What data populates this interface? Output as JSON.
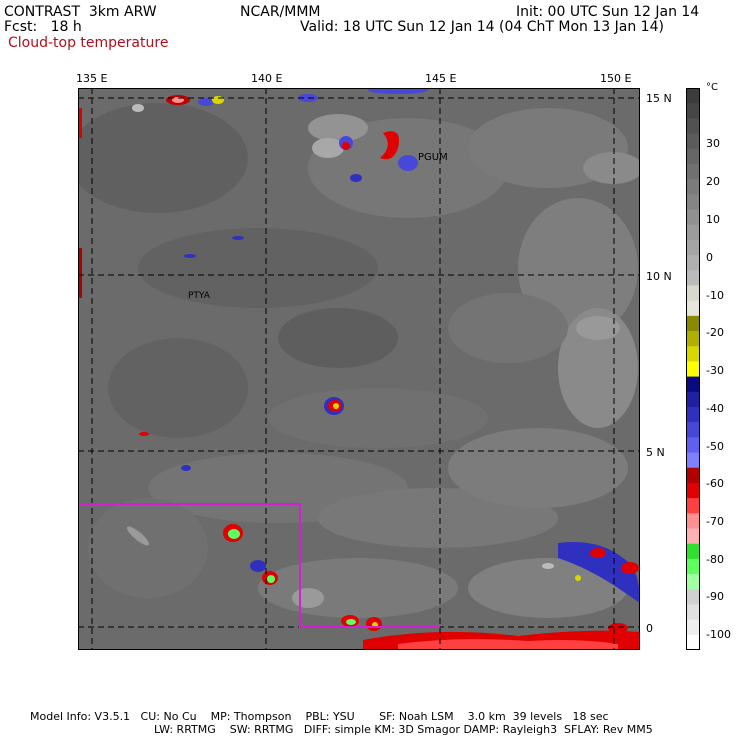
{
  "header": {
    "model": "CONTRAST  3km ARW",
    "fcst": "Fcst:   18 h",
    "field": "Cloud-top temperature",
    "center": "NCAR/MMM",
    "init": "Init: 00 UTC Sun 12 Jan 14",
    "valid": "Valid: 18 UTC Sun 12 Jan 14 (04 ChT Mon 13 Jan 14)"
  },
  "map": {
    "lon_labels": [
      "135 E",
      "140 E",
      "145 E",
      "150 E"
    ],
    "lat_labels": [
      "15 N",
      "10 N",
      "5 N",
      "0"
    ],
    "stations": [
      {
        "id": "PGUM"
      },
      {
        "id": "PTYA"
      }
    ],
    "colors": {
      "background": "#6b6b6b",
      "grid": "#000000",
      "domain_box": "#d020d0"
    }
  },
  "colorbar": {
    "unit": "°C",
    "labels": [
      "30",
      "20",
      "10",
      "0",
      "-10",
      "-20",
      "-30",
      "-40",
      "-50",
      "-60",
      "-70",
      "-80",
      "-90",
      "-100"
    ],
    "colors": [
      "#3c3c3c",
      "#464646",
      "#515151",
      "#5b5b5b",
      "#666666",
      "#707070",
      "#7b7b7b",
      "#858585",
      "#909090",
      "#9b9b9b",
      "#a5a5a5",
      "#b0b0b0",
      "#bbbbbb",
      "#d8d8cc",
      "#e6e6dc",
      "#8a8a00",
      "#b0b000",
      "#d8d800",
      "#ffff00",
      "#0a0a80",
      "#2020a0",
      "#3030c0",
      "#4848d8",
      "#6060f0",
      "#8080ff",
      "#b00000",
      "#e00000",
      "#ff4040",
      "#ff9090",
      "#ffb0b0",
      "#30e030",
      "#60ff60",
      "#a0ffa0",
      "#d0d0d0",
      "#e0e0e0",
      "#eeeeee",
      "#ffffff"
    ]
  },
  "footer": {
    "line1": "Model Info: V3.5.1   CU: No Cu    MP: Thompson    PBL: YSU       SF: Noah LSM    3.0 km  39 levels   18 sec",
    "line2": "LW: RRTMG    SW: RRTMG   DIFF: simple KM: 3D Smagor DAMP: Rayleigh3  SFLAY: Rev MM5"
  }
}
